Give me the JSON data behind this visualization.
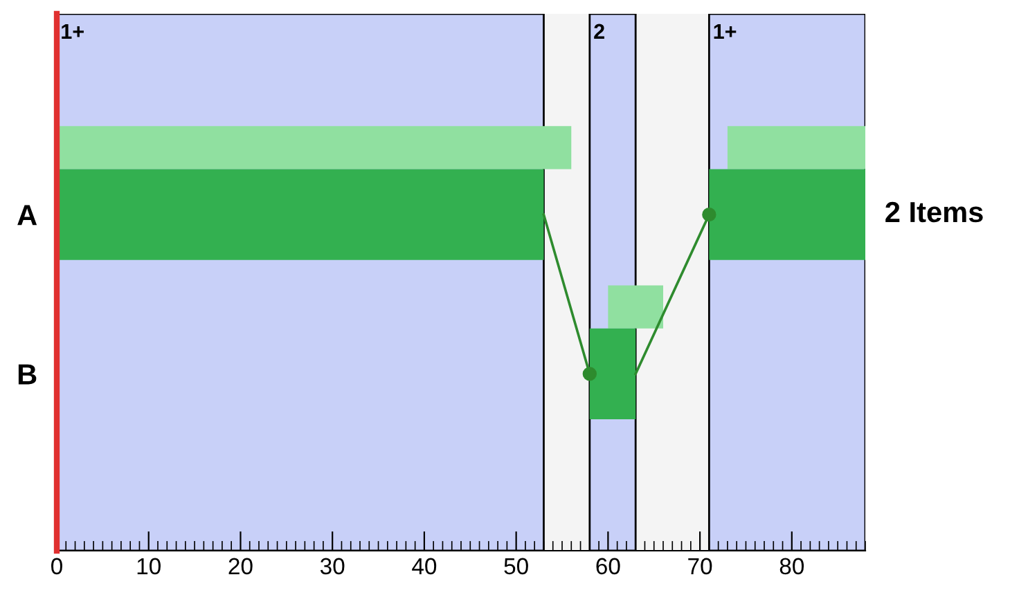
{
  "chart_data": {
    "type": "bar",
    "orientation": "horizontal",
    "categories": [
      "A",
      "B"
    ],
    "series": [
      {
        "color": "#33b050",
        "values": [
          53,
          5
        ],
        "base": [
          0,
          58
        ]
      },
      {
        "color": "#33b050",
        "values": [
          17,
          null
        ],
        "base": [
          71,
          null
        ]
      },
      {
        "color": "#90e0a0",
        "values": [
          56,
          6
        ],
        "base": [
          0,
          60
        ]
      },
      {
        "color": "#90e0a0",
        "values": [
          15,
          null
        ],
        "base": [
          73,
          null
        ]
      },
      {
        "type": "line",
        "color": "#2e8b2e",
        "values": [
          53,
          58
        ]
      },
      {
        "type": "line",
        "color": "#2e8b2e",
        "values": [
          71,
          63
        ]
      },
      {
        "type": "scatter",
        "color": "#2e8b2e",
        "values": [
          71,
          58
        ],
        "marker": "circle"
      }
    ],
    "bands": [
      {
        "axis": "x",
        "from": 0,
        "to": 53,
        "label": "1+",
        "color": "#c8d0f8"
      },
      {
        "axis": "x",
        "from": 58,
        "to": 63,
        "label": "2",
        "color": "#c8d0f8"
      },
      {
        "axis": "x",
        "from": 71,
        "to": 88,
        "label": "1+",
        "color": "#c8d0f8"
      }
    ],
    "annotations": [
      "2 Items"
    ],
    "xlim": [
      0,
      88
    ],
    "xticks": [
      0,
      10,
      20,
      30,
      40,
      50,
      60,
      70,
      80
    ],
    "grid": false,
    "legend": false
  }
}
